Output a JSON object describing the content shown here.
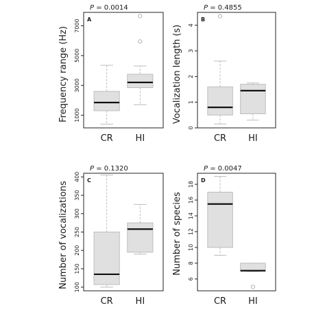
{
  "figure": {
    "panels": [
      {
        "letter": "A",
        "p_label": "P",
        "p_value": " = 0.0014",
        "chart_data": {
          "type": "boxplot",
          "categories": [
            "CR",
            "HI"
          ],
          "ylabel": "Frequency range (Hz)",
          "ylim": [
            150,
            7900
          ],
          "yticks": [
            1000,
            3000,
            5000,
            7000
          ],
          "grid": false,
          "boxes": [
            {
              "category": "CR",
              "whisker_low": 400,
              "q1": 1300,
              "median": 1850,
              "q3": 2600,
              "whisker_high": 4350,
              "outliers": []
            },
            {
              "category": "HI",
              "whisker_low": 1700,
              "q1": 2850,
              "median": 3200,
              "q3": 3750,
              "whisker_high": 4300,
              "outliers": [
                5950,
                7650
              ]
            }
          ]
        }
      },
      {
        "letter": "B",
        "p_label": "P",
        "p_value": " = 0.4855",
        "chart_data": {
          "type": "boxplot",
          "categories": [
            "CR",
            "HI"
          ],
          "ylabel": "Vocalization length (s)",
          "ylim": [
            0,
            4.5
          ],
          "yticks": [
            0,
            1,
            2,
            3,
            4
          ],
          "grid": false,
          "boxes": [
            {
              "category": "CR",
              "whisker_low": 0.15,
              "q1": 0.5,
              "median": 0.8,
              "q3": 1.6,
              "whisker_high": 2.6,
              "outliers": [
                4.35
              ]
            },
            {
              "category": "HI",
              "whisker_low": 0.3,
              "q1": 0.55,
              "median": 1.45,
              "q3": 1.7,
              "whisker_high": 1.75,
              "outliers": []
            }
          ]
        }
      },
      {
        "letter": "C",
        "p_label": "P",
        "p_value": " = 0.1320",
        "chart_data": {
          "type": "boxplot",
          "categories": [
            "CR",
            "HI"
          ],
          "ylabel": "Number of vocalizations",
          "ylim": [
            90,
            410
          ],
          "yticks": [
            100,
            150,
            200,
            250,
            300,
            350,
            400
          ],
          "grid": false,
          "boxes": [
            {
              "category": "CR",
              "whisker_low": 100,
              "q1": 107,
              "median": 135,
              "q3": 250,
              "whisker_high": 405,
              "outliers": []
            },
            {
              "category": "HI",
              "whisker_low": 190,
              "q1": 195,
              "median": 258,
              "q3": 275,
              "whisker_high": 325,
              "outliers": []
            }
          ]
        }
      },
      {
        "letter": "D",
        "p_label": "P",
        "p_value": " = 0.0047",
        "chart_data": {
          "type": "boxplot",
          "categories": [
            "CR",
            "HI"
          ],
          "ylabel": "Number of species",
          "ylim": [
            4.5,
            19.4
          ],
          "yticks": [
            6,
            8,
            10,
            12,
            14,
            16,
            18
          ],
          "grid": false,
          "boxes": [
            {
              "category": "CR",
              "whisker_low": 9,
              "q1": 10,
              "median": 15.5,
              "q3": 17,
              "whisker_high": 19,
              "outliers": []
            },
            {
              "category": "HI",
              "whisker_low": 6.95,
              "q1": 7,
              "median": 7.05,
              "q3": 8,
              "whisker_high": 8,
              "outliers": [
                5
              ]
            }
          ]
        }
      }
    ]
  }
}
